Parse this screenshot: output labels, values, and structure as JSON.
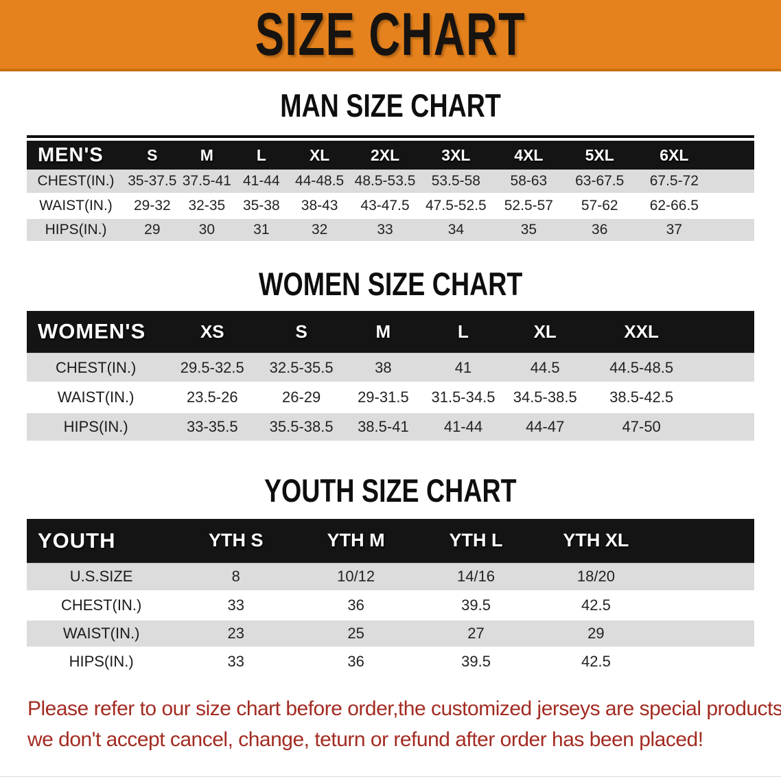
{
  "banner": {
    "title": "SIZE CHART",
    "bg_color": "#E5821E"
  },
  "sections": {
    "men": {
      "heading": "MAN SIZE CHART",
      "table": {
        "corner": "MEN'S",
        "sizes": [
          "S",
          "M",
          "L",
          "XL",
          "2XL",
          "3XL",
          "4XL",
          "5XL",
          "6XL"
        ],
        "rows": [
          {
            "label": "CHEST(IN.)",
            "values": [
              "35-37.5",
              "37.5-41",
              "41-44",
              "44-48.5",
              "48.5-53.5",
              "53.5-58",
              "58-63",
              "63-67.5",
              "67.5-72"
            ]
          },
          {
            "label": "WAIST(IN.)",
            "values": [
              "29-32",
              "32-35",
              "35-38",
              "38-43",
              "43-47.5",
              "47.5-52.5",
              "52.5-57",
              "57-62",
              "62-66.5"
            ]
          },
          {
            "label": "HIPS(IN.)",
            "values": [
              "29",
              "30",
              "31",
              "32",
              "33",
              "34",
              "35",
              "36",
              "37"
            ]
          }
        ]
      }
    },
    "women": {
      "heading": "WOMEN SIZE CHART",
      "table": {
        "corner": "WOMEN'S",
        "sizes": [
          "XS",
          "S",
          "M",
          "L",
          "XL",
          "XXL"
        ],
        "rows": [
          {
            "label": "CHEST(IN.)",
            "values": [
              "29.5-32.5",
              "32.5-35.5",
              "38",
              "41",
              "44.5",
              "44.5-48.5"
            ]
          },
          {
            "label": "WAIST(IN.)",
            "values": [
              "23.5-26",
              "26-29",
              "29-31.5",
              "31.5-34.5",
              "34.5-38.5",
              "38.5-42.5"
            ]
          },
          {
            "label": "HIPS(IN.)",
            "values": [
              "33-35.5",
              "35.5-38.5",
              "38.5-41",
              "41-44",
              "44-47",
              "47-50"
            ]
          }
        ]
      }
    },
    "youth": {
      "heading": "YOUTH SIZE CHART",
      "table": {
        "corner": "YOUTH",
        "sizes": [
          "YTH S",
          "YTH M",
          "YTH L",
          "YTH XL"
        ],
        "rows": [
          {
            "label": "U.S.SIZE",
            "values": [
              "8",
              "10/12",
              "14/16",
              "18/20"
            ]
          },
          {
            "label": "CHEST(IN.)",
            "values": [
              "33",
              "36",
              "39.5",
              "42.5"
            ]
          },
          {
            "label": "WAIST(IN.)",
            "values": [
              "23",
              "25",
              "27",
              "29"
            ]
          },
          {
            "label": "HIPS(IN.)",
            "values": [
              "33",
              "36",
              "39.5",
              "42.5"
            ]
          }
        ]
      }
    }
  },
  "disclaimer": {
    "line1": "Please refer to our size chart before order,the customized jerseys are special products,",
    "line2": "we don't accept cancel, change, teturn or refund after order has been placed!",
    "color": "#A32B22"
  }
}
